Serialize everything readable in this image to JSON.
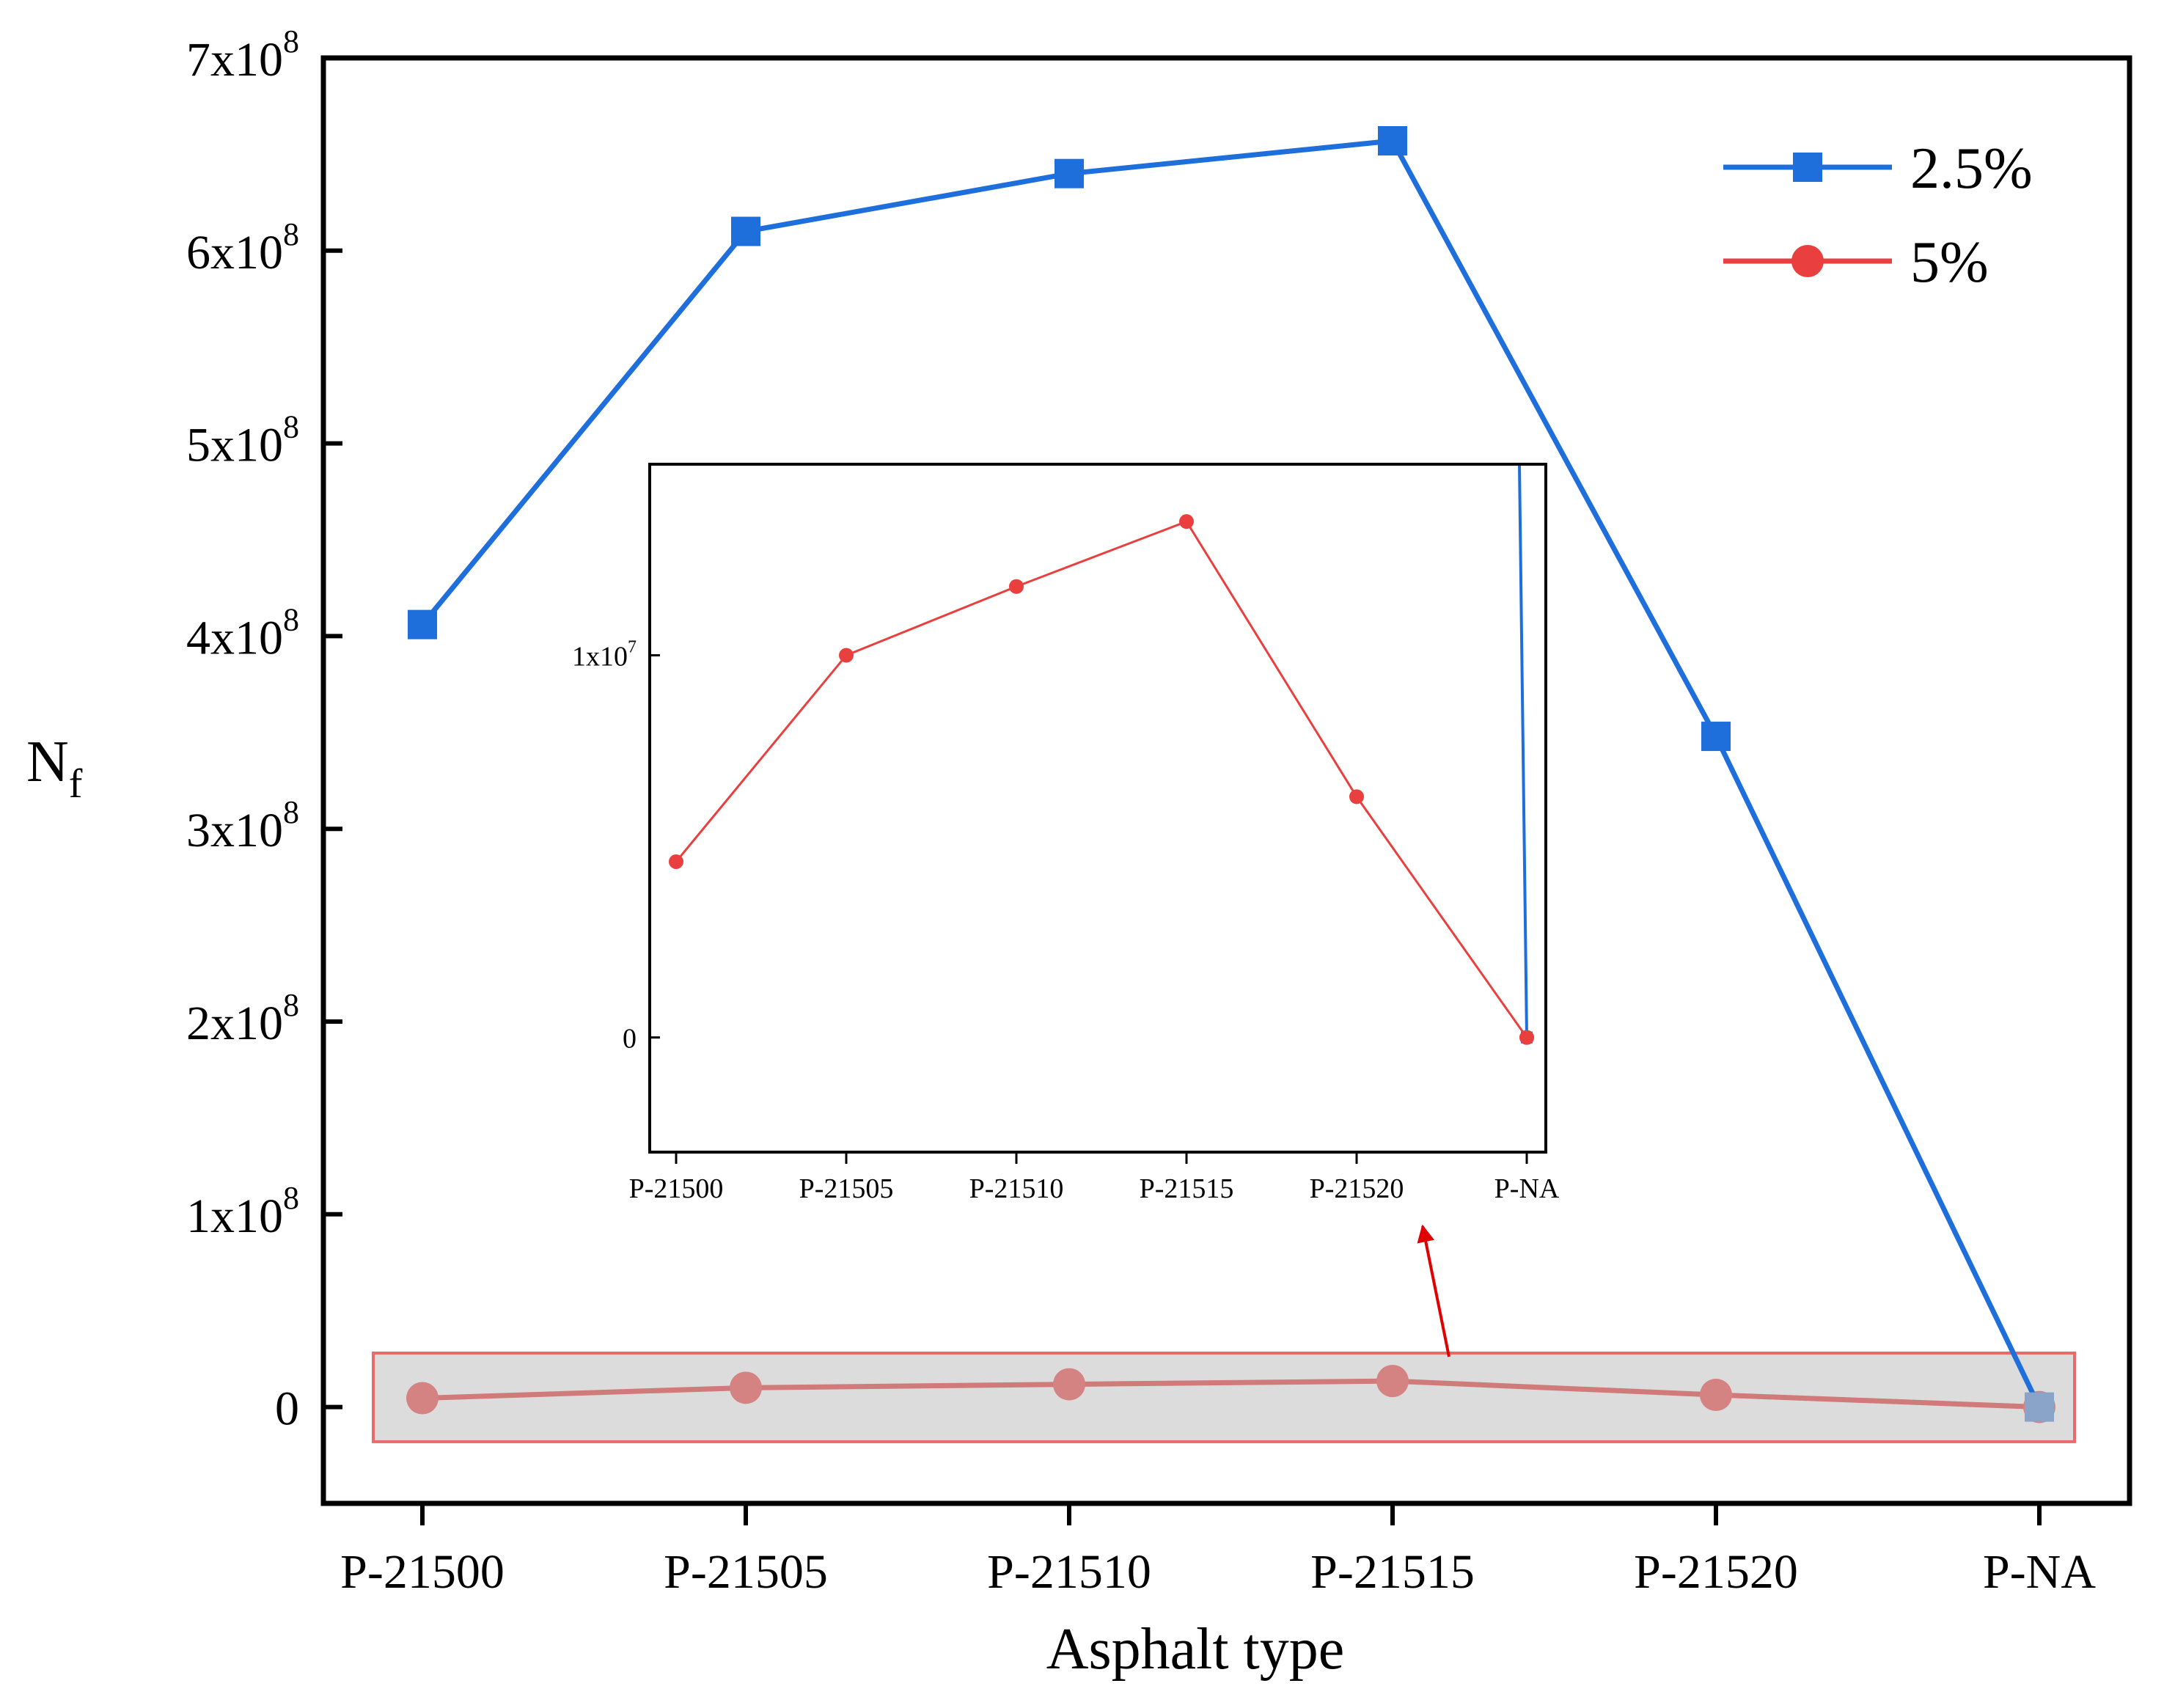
{
  "chart_data": {
    "type": "line",
    "categories": [
      "P-21500",
      "P-21505",
      "P-21510",
      "P-21515",
      "P-21520",
      "P-NA"
    ],
    "series": [
      {
        "name": "2.5%",
        "values": [
          406000000,
          610000000,
          640000000,
          657000000,
          348000000,
          0
        ],
        "color": "#1e6fdc",
        "marker": "square"
      },
      {
        "name": "5%",
        "values": [
          4600000,
          10000000,
          11800000,
          13500000,
          6300000,
          0
        ],
        "color": "#e93f3f",
        "marker": "circle"
      }
    ],
    "title": "",
    "xlabel": "Asphalt type",
    "ylabel": {
      "main": "N",
      "sub": "f"
    },
    "ylim": [
      -50000000,
      700000000
    ],
    "yticks": [
      {
        "value": 0,
        "label": "0"
      },
      {
        "value": 100000000,
        "label": "1x10",
        "exp": "8"
      },
      {
        "value": 200000000,
        "label": "2x10",
        "exp": "8"
      },
      {
        "value": 300000000,
        "label": "3x10",
        "exp": "8"
      },
      {
        "value": 400000000,
        "label": "4x10",
        "exp": "8"
      },
      {
        "value": 500000000,
        "label": "5x10",
        "exp": "8"
      },
      {
        "value": 600000000,
        "label": "6x10",
        "exp": "8"
      },
      {
        "value": 700000000,
        "label": "7x10",
        "exp": "8"
      }
    ],
    "legend_placement": "top-right",
    "grid": false,
    "inset": {
      "ylim": [
        -3000000,
        15000000
      ],
      "yticks": [
        {
          "value": 0,
          "label": "0"
        },
        {
          "value": 10000000,
          "label": "1x10",
          "exp": "7"
        }
      ],
      "annotation": "zoomed view of the highlighted region near zero"
    }
  }
}
